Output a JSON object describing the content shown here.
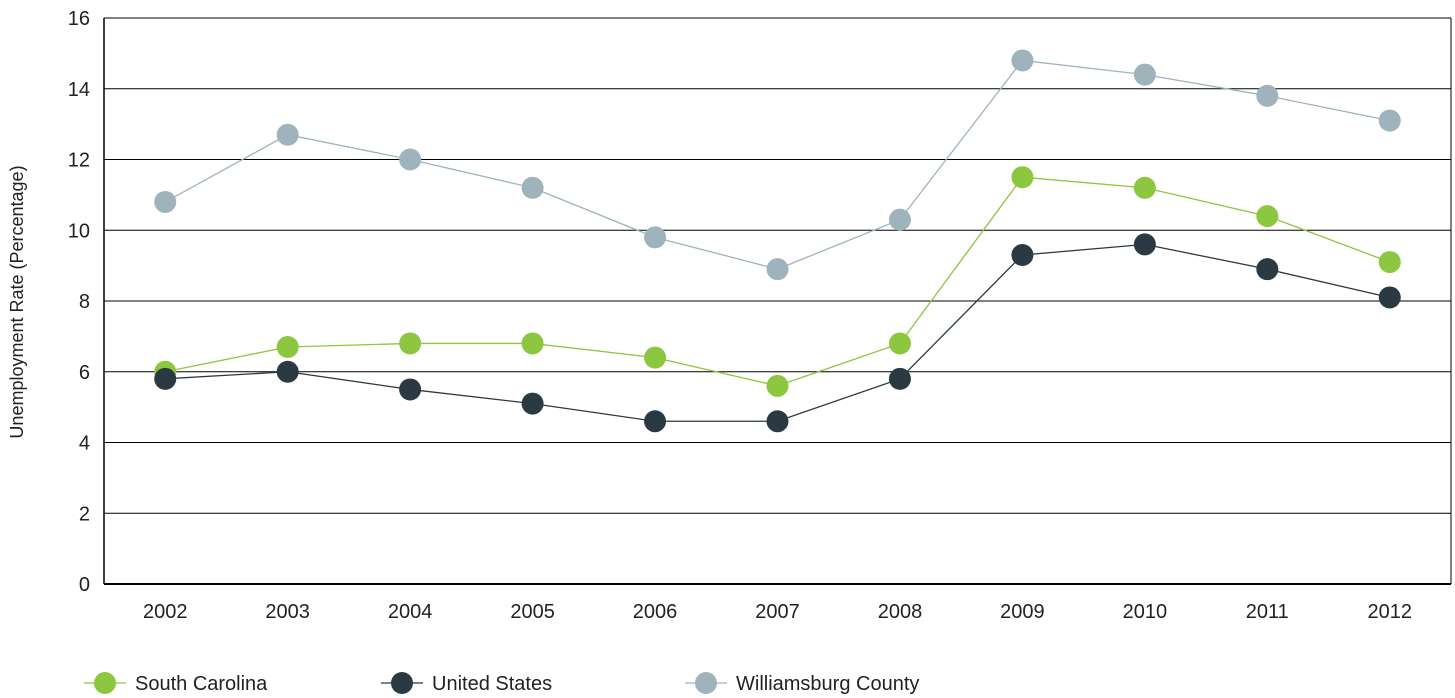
{
  "chart_data": {
    "type": "line",
    "title": "",
    "xlabel": "",
    "ylabel": "Unemployment Rate (Percentage)",
    "ylim": [
      0,
      16
    ],
    "yticks": [
      0,
      2,
      4,
      6,
      8,
      10,
      12,
      14,
      16
    ],
    "grid": "horizontal",
    "legend_position": "bottom",
    "categories": [
      "2002",
      "2003",
      "2004",
      "2005",
      "2006",
      "2007",
      "2008",
      "2009",
      "2010",
      "2011",
      "2012"
    ],
    "series": [
      {
        "name": "South Carolina",
        "color": "#8dc63f",
        "values": [
          6.0,
          6.7,
          6.8,
          6.8,
          6.4,
          5.6,
          6.8,
          11.5,
          11.2,
          10.4,
          9.1
        ]
      },
      {
        "name": "United States",
        "color": "#2b3a42",
        "values": [
          5.8,
          6.0,
          5.5,
          5.1,
          4.6,
          4.6,
          5.8,
          9.3,
          9.6,
          8.9,
          8.1
        ]
      },
      {
        "name": "Williamsburg County",
        "color": "#9fb3bd",
        "values": [
          10.8,
          12.7,
          12.0,
          11.2,
          9.8,
          8.9,
          10.3,
          14.8,
          14.4,
          13.8,
          13.1
        ]
      }
    ]
  }
}
